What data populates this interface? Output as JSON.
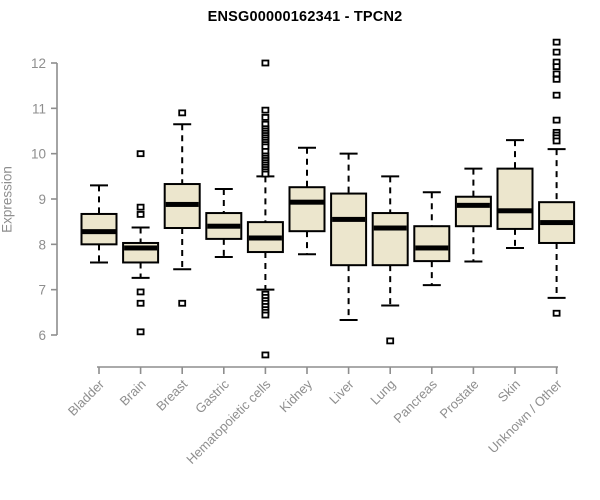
{
  "chart_data": {
    "type": "boxplot",
    "title": "ENSG00000162341 - TPCN2",
    "ylabel": "Expression",
    "xlabel": "",
    "y_ticks": [
      6,
      7,
      8,
      9,
      10,
      11,
      12
    ],
    "ylim": [
      5.4,
      12.6
    ],
    "grid": "off",
    "legend": "none",
    "categories": [
      "Bladder",
      "Brain",
      "Breast",
      "Gastric",
      "Hematopoietic cells",
      "Kidney",
      "Liver",
      "Lung",
      "Pancreas",
      "Prostate",
      "Skin",
      "Unknown / Other"
    ],
    "series": [
      {
        "label": "Bladder",
        "whisker_low": 7.6,
        "q1": 8.0,
        "median": 8.28,
        "q3": 8.67,
        "whisker_high": 9.3,
        "outliers": []
      },
      {
        "label": "Brain",
        "whisker_low": 7.26,
        "q1": 7.6,
        "median": 7.92,
        "q3": 8.03,
        "whisker_high": 8.37,
        "outliers": [
          10.0,
          8.82,
          8.66,
          6.95,
          6.7,
          6.07
        ]
      },
      {
        "label": "Breast",
        "whisker_low": 7.45,
        "q1": 8.36,
        "median": 8.88,
        "q3": 9.33,
        "whisker_high": 10.65,
        "outliers": [
          10.9,
          6.7
        ]
      },
      {
        "label": "Gastric",
        "whisker_low": 7.72,
        "q1": 8.12,
        "median": 8.4,
        "q3": 8.69,
        "whisker_high": 9.22,
        "outliers": []
      },
      {
        "label": "Hematopoietic cells",
        "whisker_low": 7.0,
        "q1": 7.83,
        "median": 8.14,
        "q3": 8.49,
        "whisker_high": 9.5,
        "outliers": [
          12.0,
          10.96,
          10.8,
          10.65,
          10.55,
          10.5,
          10.45,
          10.4,
          10.35,
          10.3,
          10.25,
          10.2,
          10.15,
          10.05,
          9.95,
          9.9,
          9.85,
          9.8,
          9.75,
          9.7,
          9.65,
          9.6,
          9.55,
          6.9,
          6.83,
          6.76,
          6.7,
          6.63,
          6.56,
          6.5,
          6.44,
          5.56
        ]
      },
      {
        "label": "Kidney",
        "whisker_low": 7.78,
        "q1": 8.29,
        "median": 8.93,
        "q3": 9.26,
        "whisker_high": 10.13,
        "outliers": []
      },
      {
        "label": "Liver",
        "whisker_low": 6.33,
        "q1": 7.54,
        "median": 8.55,
        "q3": 9.12,
        "whisker_high": 10.0,
        "outliers": []
      },
      {
        "label": "Lung",
        "whisker_low": 6.65,
        "q1": 7.54,
        "median": 8.36,
        "q3": 8.69,
        "whisker_high": 9.5,
        "outliers": [
          5.87
        ]
      },
      {
        "label": "Pancreas",
        "whisker_low": 7.1,
        "q1": 7.63,
        "median": 7.92,
        "q3": 8.4,
        "whisker_high": 9.15,
        "outliers": []
      },
      {
        "label": "Prostate",
        "whisker_low": 7.62,
        "q1": 8.4,
        "median": 8.86,
        "q3": 9.05,
        "whisker_high": 9.67,
        "outliers": []
      },
      {
        "label": "Skin",
        "whisker_low": 7.92,
        "q1": 8.34,
        "median": 8.74,
        "q3": 9.67,
        "whisker_high": 10.3,
        "outliers": []
      },
      {
        "label": "Unknown / Other",
        "whisker_low": 6.82,
        "q1": 8.03,
        "median": 8.48,
        "q3": 8.93,
        "whisker_high": 10.1,
        "outliers": [
          12.46,
          12.24,
          12.02,
          11.92,
          11.76,
          11.64,
          11.29,
          10.74,
          10.47,
          10.41,
          10.35,
          10.28,
          6.48
        ]
      }
    ],
    "colors": {
      "box_fill": "#ece6cd",
      "box_border": "#000000",
      "median": "#000000",
      "whisker": "#000000",
      "outlier": "#000000",
      "axis": "#8e8e8e",
      "tick_label": "#8e8e8e",
      "title": "#000000",
      "background": "#ffffff"
    }
  }
}
